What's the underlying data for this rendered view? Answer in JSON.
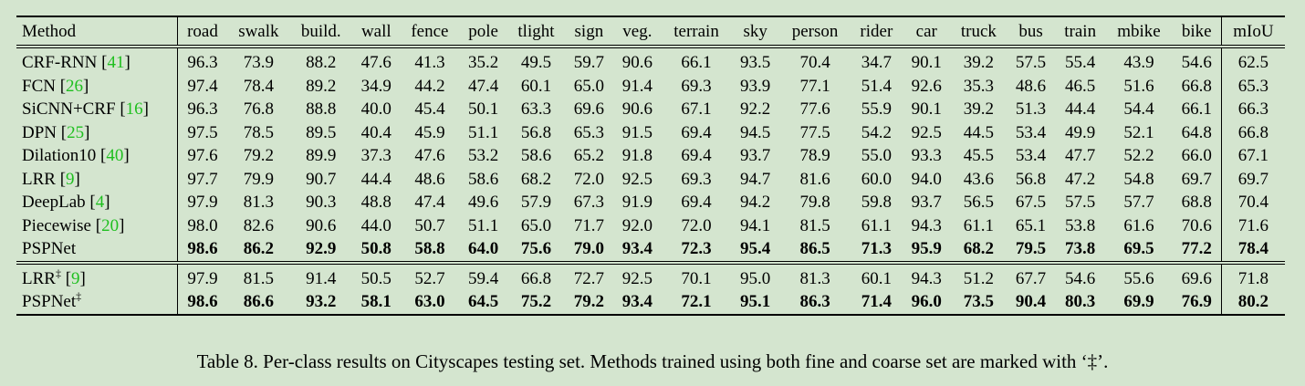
{
  "table": {
    "header": [
      "Method",
      "road",
      "swalk",
      "build.",
      "wall",
      "fence",
      "pole",
      "tlight",
      "sign",
      "veg.",
      "terrain",
      "sky",
      "person",
      "rider",
      "car",
      "truck",
      "bus",
      "train",
      "mbike",
      "bike",
      "mIoU"
    ],
    "group1": [
      {
        "name": "CRF-RNN",
        "ref": "41",
        "mark": "",
        "values": [
          "96.3",
          "73.9",
          "88.2",
          "47.6",
          "41.3",
          "35.2",
          "49.5",
          "59.7",
          "90.6",
          "66.1",
          "93.5",
          "70.4",
          "34.7",
          "90.1",
          "39.2",
          "57.5",
          "55.4",
          "43.9",
          "54.6",
          "62.5"
        ]
      },
      {
        "name": "FCN",
        "ref": "26",
        "mark": "",
        "values": [
          "97.4",
          "78.4",
          "89.2",
          "34.9",
          "44.2",
          "47.4",
          "60.1",
          "65.0",
          "91.4",
          "69.3",
          "93.9",
          "77.1",
          "51.4",
          "92.6",
          "35.3",
          "48.6",
          "46.5",
          "51.6",
          "66.8",
          "65.3"
        ]
      },
      {
        "name": "SiCNN+CRF",
        "ref": "16",
        "mark": "",
        "values": [
          "96.3",
          "76.8",
          "88.8",
          "40.0",
          "45.4",
          "50.1",
          "63.3",
          "69.6",
          "90.6",
          "67.1",
          "92.2",
          "77.6",
          "55.9",
          "90.1",
          "39.2",
          "51.3",
          "44.4",
          "54.4",
          "66.1",
          "66.3"
        ]
      },
      {
        "name": "DPN",
        "ref": "25",
        "mark": "",
        "values": [
          "97.5",
          "78.5",
          "89.5",
          "40.4",
          "45.9",
          "51.1",
          "56.8",
          "65.3",
          "91.5",
          "69.4",
          "94.5",
          "77.5",
          "54.2",
          "92.5",
          "44.5",
          "53.4",
          "49.9",
          "52.1",
          "64.8",
          "66.8"
        ]
      },
      {
        "name": "Dilation10",
        "ref": "40",
        "mark": "",
        "values": [
          "97.6",
          "79.2",
          "89.9",
          "37.3",
          "47.6",
          "53.2",
          "58.6",
          "65.2",
          "91.8",
          "69.4",
          "93.7",
          "78.9",
          "55.0",
          "93.3",
          "45.5",
          "53.4",
          "47.7",
          "52.2",
          "66.0",
          "67.1"
        ]
      },
      {
        "name": "LRR",
        "ref": "9",
        "mark": "",
        "values": [
          "97.7",
          "79.9",
          "90.7",
          "44.4",
          "48.6",
          "58.6",
          "68.2",
          "72.0",
          "92.5",
          "69.3",
          "94.7",
          "81.6",
          "60.0",
          "94.0",
          "43.6",
          "56.8",
          "47.2",
          "54.8",
          "69.7",
          "69.7"
        ]
      },
      {
        "name": "DeepLab",
        "ref": "4",
        "mark": "",
        "values": [
          "97.9",
          "81.3",
          "90.3",
          "48.8",
          "47.4",
          "49.6",
          "57.9",
          "67.3",
          "91.9",
          "69.4",
          "94.2",
          "79.8",
          "59.8",
          "93.7",
          "56.5",
          "67.5",
          "57.5",
          "57.7",
          "68.8",
          "70.4"
        ]
      },
      {
        "name": "Piecewise",
        "ref": "20",
        "mark": "",
        "values": [
          "98.0",
          "82.6",
          "90.6",
          "44.0",
          "50.7",
          "51.1",
          "65.0",
          "71.7",
          "92.0",
          "72.0",
          "94.1",
          "81.5",
          "61.1",
          "94.3",
          "61.1",
          "65.1",
          "53.8",
          "61.6",
          "70.6",
          "71.6"
        ]
      },
      {
        "name": "PSPNet",
        "ref": "",
        "mark": "",
        "best": true,
        "values": [
          "98.6",
          "86.2",
          "92.9",
          "50.8",
          "58.8",
          "64.0",
          "75.6",
          "79.0",
          "93.4",
          "72.3",
          "95.4",
          "86.5",
          "71.3",
          "95.9",
          "68.2",
          "79.5",
          "73.8",
          "69.5",
          "77.2",
          "78.4"
        ]
      }
    ],
    "group2": [
      {
        "name": "LRR",
        "ref": "9",
        "mark": "‡",
        "values": [
          "97.9",
          "81.5",
          "91.4",
          "50.5",
          "52.7",
          "59.4",
          "66.8",
          "72.7",
          "92.5",
          "70.1",
          "95.0",
          "81.3",
          "60.1",
          "94.3",
          "51.2",
          "67.7",
          "54.6",
          "55.6",
          "69.6",
          "71.8"
        ]
      },
      {
        "name": "PSPNet",
        "ref": "",
        "mark": "‡",
        "best": true,
        "values": [
          "98.6",
          "86.6",
          "93.2",
          "58.1",
          "63.0",
          "64.5",
          "75.2",
          "79.2",
          "93.4",
          "72.1",
          "95.1",
          "86.3",
          "71.4",
          "96.0",
          "73.5",
          "90.4",
          "80.3",
          "69.9",
          "76.9",
          "80.2"
        ]
      }
    ]
  },
  "caption": "Table 8. Per-class results on Cityscapes testing set. Methods trained using both fine and coarse set are marked with ‘‡’.",
  "colors": {
    "background": "#d4e5cf",
    "citation": "#1fbf1f"
  }
}
